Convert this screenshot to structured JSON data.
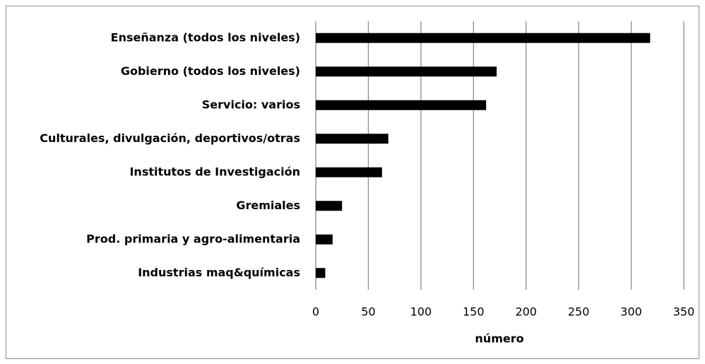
{
  "chart_data": {
    "type": "hbar",
    "categories": [
      "Enseñanza (todos los niveles)",
      "Gobierno (todos los niveles)",
      "Servicio: varios",
      "Culturales, divulgación, deportivos/otras",
      "Institutos de Investigación",
      "Gremiales",
      "Prod. primaria y agro-alimentaria",
      "Industrias maq&químicas"
    ],
    "values": [
      318,
      172,
      162,
      69,
      63,
      25,
      16,
      9
    ],
    "color": "#000000",
    "x_label": "número",
    "xlim": [
      0,
      350
    ],
    "xticks": [
      0,
      50,
      100,
      150,
      200,
      250,
      300,
      350
    ],
    "grid": true
  }
}
